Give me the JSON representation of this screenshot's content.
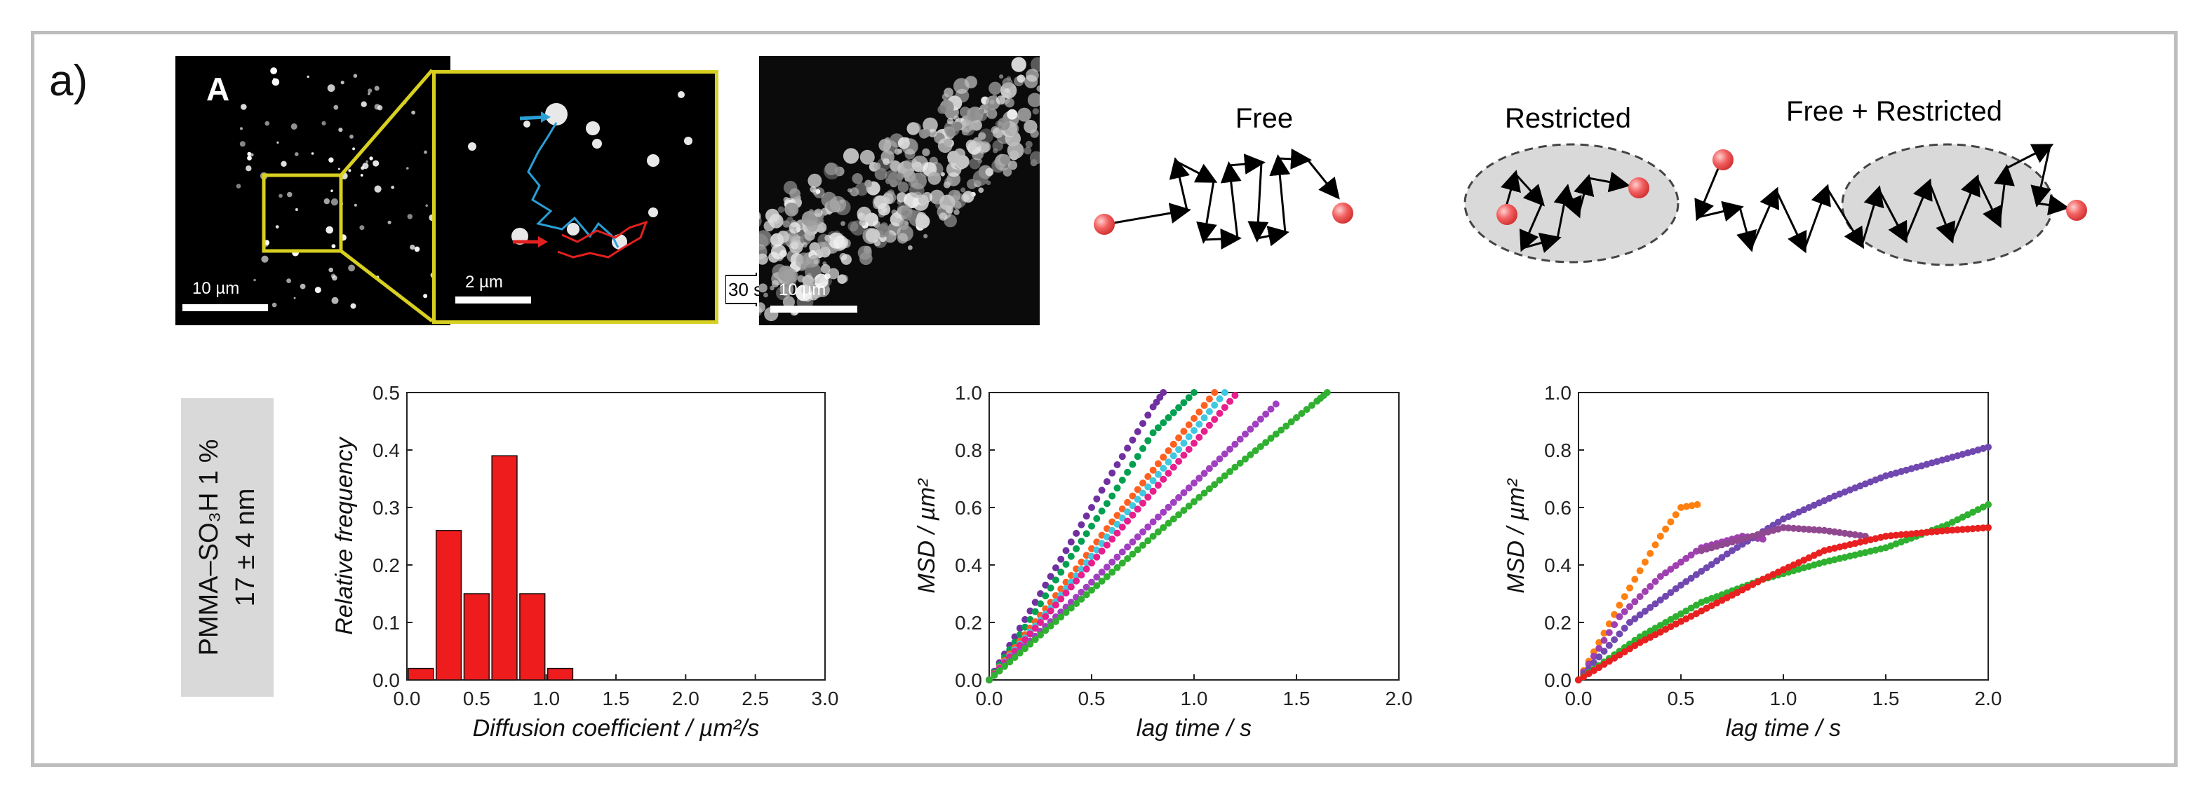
{
  "panel_label": "a)",
  "micrographs": {
    "left_letter": "A",
    "left_scale": "10 µm",
    "zoom_scale": "2 µm",
    "arrow_label": "30 s",
    "right_scale": "10 µm"
  },
  "diffusion_modes": {
    "free": "Free",
    "restricted": "Restricted",
    "free_restricted": "Free + Restricted"
  },
  "sample": {
    "name": "PMMA–SO₃H 1 %",
    "size": "17 ± 4 nm"
  },
  "colors": {
    "bar_red": "#ee1c1c",
    "particle": "#f26060",
    "blue_track": "#2a9fd6",
    "red_track": "#e22020",
    "yellow_box": "#d8d020"
  },
  "chart_data": [
    {
      "type": "bar",
      "xlabel": "Diffusion coefficient / µm²/s",
      "ylabel": "Relative frequency",
      "xlim": [
        0.0,
        3.0
      ],
      "ylim": [
        0.0,
        0.5
      ],
      "xticks": [
        "0.0",
        "0.5",
        "1.0",
        "1.5",
        "2.0",
        "2.5",
        "3.0"
      ],
      "yticks": [
        "0.0",
        "0.1",
        "0.2",
        "0.3",
        "0.4",
        "0.5"
      ],
      "bin_width": 0.2,
      "x": [
        0.1,
        0.3,
        0.5,
        0.7,
        0.9,
        1.1
      ],
      "values": [
        0.02,
        0.26,
        0.15,
        0.39,
        0.15,
        0.02
      ]
    },
    {
      "type": "scatter",
      "xlabel": "lag time / s",
      "ylabel": "MSD / µm²",
      "xlim": [
        0.0,
        2.0
      ],
      "ylim": [
        0.0,
        1.0
      ],
      "xticks": [
        "0.0",
        "0.5",
        "1.0",
        "1.5",
        "2.0"
      ],
      "yticks": [
        "0.0",
        "0.2",
        "0.4",
        "0.6",
        "0.8",
        "1.0"
      ],
      "series": [
        {
          "color": "#7030a0",
          "x": [
            0.0,
            0.2,
            0.4,
            0.6,
            0.8,
            0.85
          ],
          "y": [
            0.0,
            0.24,
            0.48,
            0.72,
            0.95,
            1.0
          ]
        },
        {
          "color": "#00a050",
          "x": [
            0.0,
            0.2,
            0.4,
            0.6,
            0.8,
            1.0
          ],
          "y": [
            0.0,
            0.21,
            0.43,
            0.64,
            0.86,
            1.0
          ]
        },
        {
          "color": "#ff6020",
          "x": [
            0.0,
            0.3,
            0.6,
            0.9,
            1.1
          ],
          "y": [
            0.0,
            0.27,
            0.55,
            0.82,
            1.0
          ]
        },
        {
          "color": "#40c8e0",
          "x": [
            0.0,
            0.3,
            0.6,
            0.9,
            1.15
          ],
          "y": [
            0.0,
            0.25,
            0.52,
            0.78,
            1.0
          ]
        },
        {
          "color": "#e81e8c",
          "x": [
            0.0,
            0.3,
            0.6,
            0.9,
            1.2
          ],
          "y": [
            0.0,
            0.24,
            0.49,
            0.74,
            0.99
          ]
        },
        {
          "color": "#a040c0",
          "x": [
            0.0,
            0.4,
            0.8,
            1.2,
            1.4
          ],
          "y": [
            0.0,
            0.27,
            0.55,
            0.82,
            0.96
          ]
        },
        {
          "color": "#30b030",
          "x": [
            0.0,
            0.4,
            0.8,
            1.2,
            1.6,
            1.65
          ],
          "y": [
            0.0,
            0.25,
            0.5,
            0.74,
            0.97,
            1.0
          ]
        }
      ]
    },
    {
      "type": "scatter",
      "xlabel": "lag time / s",
      "ylabel": "MSD / µm²",
      "xlim": [
        0.0,
        2.0
      ],
      "ylim": [
        0.0,
        1.0
      ],
      "xticks": [
        "0.0",
        "0.5",
        "1.0",
        "1.5",
        "2.0"
      ],
      "yticks": [
        "0.0",
        "0.2",
        "0.4",
        "0.6",
        "0.8",
        "1.0"
      ],
      "series": [
        {
          "color": "#ff8010",
          "x": [
            0.0,
            0.1,
            0.2,
            0.3,
            0.4,
            0.5,
            0.58
          ],
          "y": [
            0.0,
            0.13,
            0.26,
            0.38,
            0.5,
            0.6,
            0.61
          ]
        },
        {
          "color": "#a040b0",
          "x": [
            0.0,
            0.2,
            0.4,
            0.6,
            0.8,
            0.9
          ],
          "y": [
            0.0,
            0.22,
            0.36,
            0.46,
            0.5,
            0.49
          ]
        },
        {
          "color": "#7048b0",
          "x": [
            0.0,
            0.25,
            0.5,
            0.75,
            1.0,
            1.25,
            1.5,
            1.75,
            2.0
          ],
          "y": [
            0.0,
            0.2,
            0.33,
            0.45,
            0.56,
            0.64,
            0.71,
            0.76,
            0.81
          ]
        },
        {
          "color": "#904890",
          "x": [
            0.6,
            0.8,
            1.0,
            1.2,
            1.4
          ],
          "y": [
            0.45,
            0.49,
            0.53,
            0.52,
            0.5
          ]
        },
        {
          "color": "#30b030",
          "x": [
            0.0,
            0.3,
            0.6,
            0.9,
            1.2,
            1.5,
            1.8,
            2.0
          ],
          "y": [
            0.0,
            0.15,
            0.27,
            0.35,
            0.41,
            0.46,
            0.54,
            0.61
          ]
        },
        {
          "color": "#e82020",
          "x": [
            0.0,
            0.3,
            0.6,
            0.9,
            1.2,
            1.5,
            1.8,
            2.0
          ],
          "y": [
            0.0,
            0.13,
            0.24,
            0.35,
            0.45,
            0.5,
            0.52,
            0.53
          ]
        }
      ]
    }
  ]
}
